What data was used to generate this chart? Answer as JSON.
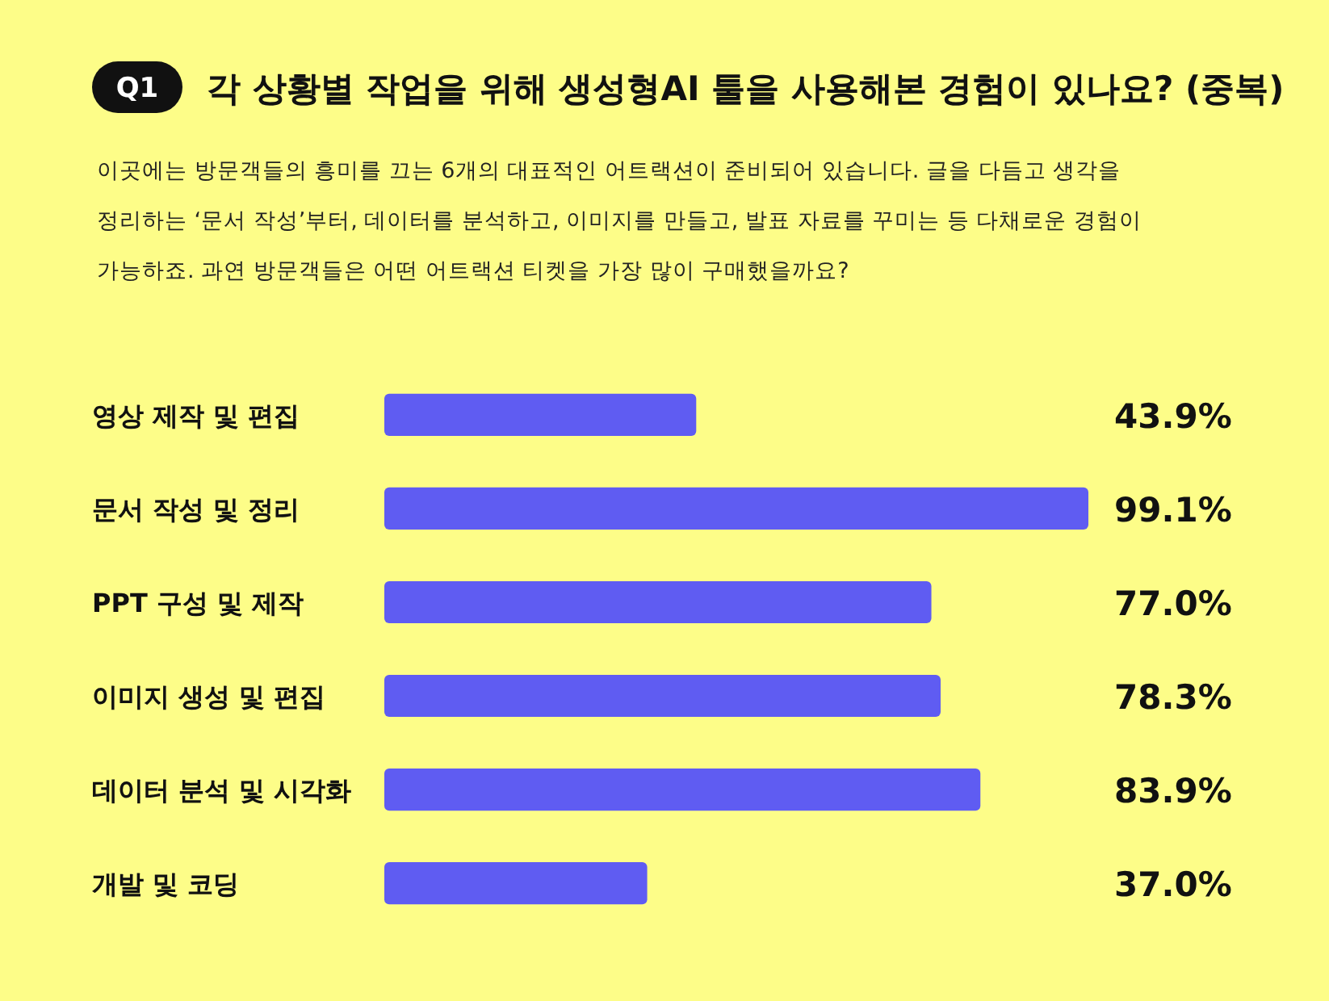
{
  "chart_data": {
    "type": "bar",
    "orientation": "horizontal",
    "title": "각 상황별 작업을 위해 생성형AI 툴을 사용해본 경험이 있나요? (중복)",
    "subtitle": "이곳에는 방문객들의 흥미를 끄는 6개의 대표적인 어트랙션이 준비되어 있습니다. 글을 다듬고 생각을\n정리하는 ‘문서 작성’부터, 데이터를 분석하고, 이미지를 만들고, 발표 자료를 꾸미는 등 다채로운 경험이\n가능하죠. 과연 방문객들은 어떤 어트랙션 티켓을 가장 많이 구매했을까요?",
    "annotations": [
      "Q1"
    ],
    "categories": [
      "영상 제작 및 편집",
      "문서 작성 및 정리",
      "PPT 구성 및 제작",
      "이미지 생성 및 편집",
      "데이터 분석 및 시각화",
      "개발 및 코딩"
    ],
    "values": [
      43.9,
      99.1,
      77.0,
      78.3,
      83.9,
      37.0
    ],
    "value_labels": [
      "43.9%",
      "99.1%",
      "77.0%",
      "78.3%",
      "83.9%",
      "37.0%"
    ],
    "color": "#5f5cf2"
  }
}
